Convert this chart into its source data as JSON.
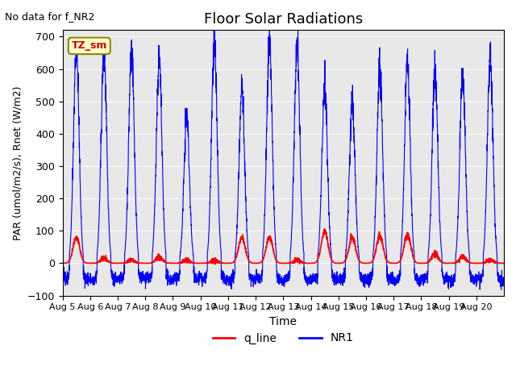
{
  "title": "Floor Solar Radiations",
  "note": "No data for f_NR2",
  "xlabel": "Time",
  "ylabel": "PAR (umol/m2/s), Rnet (W/m2)",
  "ylim": [
    -100,
    720
  ],
  "yticks": [
    -100,
    0,
    100,
    200,
    300,
    400,
    500,
    600,
    700
  ],
  "days": 16,
  "xtick_labels": [
    "Aug 5",
    "Aug 6",
    "Aug 7",
    "Aug 8",
    "Aug 9",
    "Aug 10",
    "Aug 11",
    "Aug 12",
    "Aug 13",
    "Aug 14",
    "Aug 15",
    "Aug 16",
    "Aug 17",
    "Aug 18",
    "Aug 19",
    "Aug 20"
  ],
  "legend_entries": [
    "q_line",
    "NR1"
  ],
  "legend_colors": [
    "#ff0000",
    "#0000ff"
  ],
  "bg_color": "#e8e8e8",
  "line_color_red": "#ff0000",
  "line_color_blue": "#0000ff",
  "inset_label": "TZ_sm",
  "inset_bg": "#ffffcc",
  "inset_text_color": "#cc0000",
  "nr1_peaks": [
    665,
    655,
    660,
    630,
    450,
    690,
    540,
    690,
    670,
    548,
    505,
    600,
    620,
    610,
    590,
    640
  ],
  "q_peaks": [
    80,
    15,
    10,
    20,
    10,
    10,
    80,
    80,
    10,
    100,
    80,
    85,
    90,
    30,
    20,
    10
  ]
}
